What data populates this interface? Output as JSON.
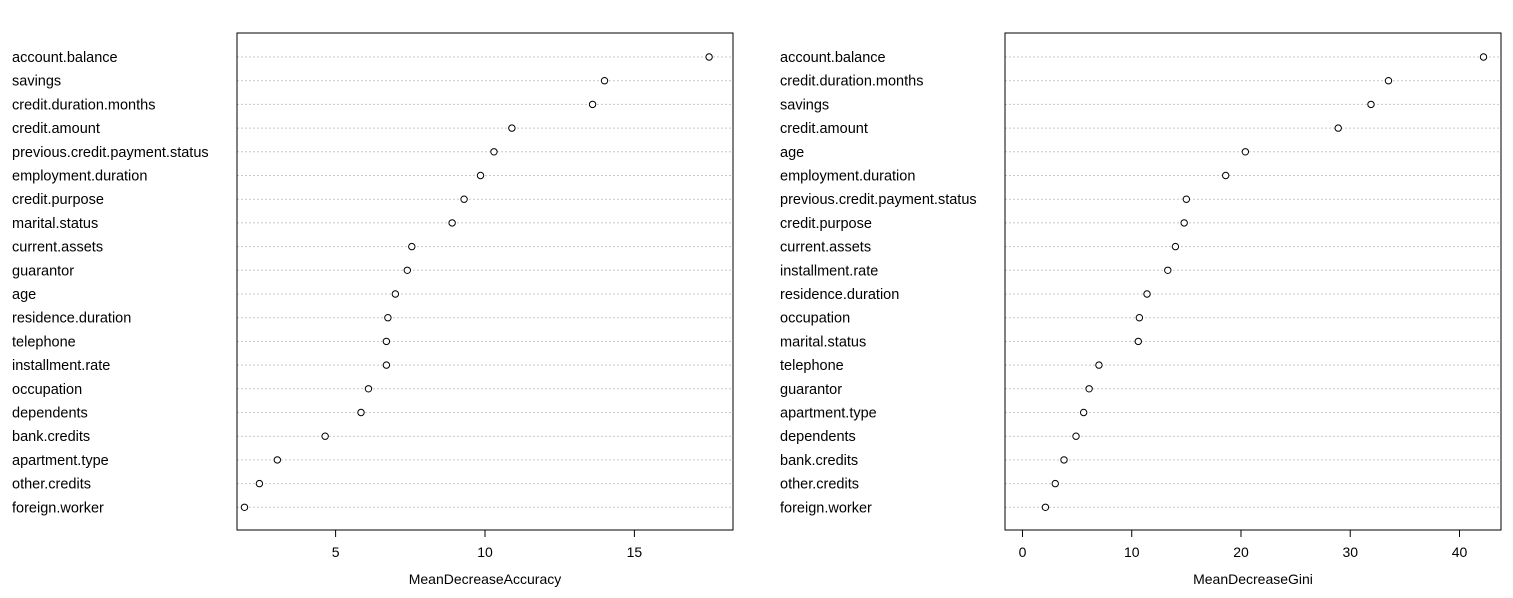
{
  "chart_data": [
    {
      "type": "dotchart",
      "title": "",
      "xlabel": "MeanDecreaseAccuracy",
      "ylabel": "",
      "xlim": [
        1.7,
        18.3
      ],
      "xticks": [
        5,
        10,
        15
      ],
      "grid": "dotted horizontal lines",
      "categories": [
        "account.balance",
        "savings",
        "credit.duration.months",
        "credit.amount",
        "previous.credit.payment.status",
        "employment.duration",
        "credit.purpose",
        "marital.status",
        "current.assets",
        "guarantor",
        "age",
        "residence.duration",
        "telephone",
        "installment.rate",
        "occupation",
        "dependents",
        "bank.credits",
        "apartment.type",
        "other.credits",
        "foreign.worker"
      ],
      "values": [
        17.5,
        14.0,
        13.6,
        10.9,
        10.3,
        9.85,
        9.3,
        8.9,
        7.55,
        7.4,
        7.0,
        6.75,
        6.7,
        6.7,
        6.1,
        5.85,
        4.65,
        3.05,
        2.45,
        1.95
      ]
    },
    {
      "type": "dotchart",
      "title": "",
      "xlabel": "MeanDecreaseGini",
      "ylabel": "",
      "xlim": [
        -1.6,
        43.8
      ],
      "xticks": [
        0,
        10,
        20,
        30,
        40
      ],
      "grid": "dotted horizontal lines",
      "categories": [
        "account.balance",
        "credit.duration.months",
        "savings",
        "credit.amount",
        "age",
        "employment.duration",
        "previous.credit.payment.status",
        "credit.purpose",
        "current.assets",
        "installment.rate",
        "residence.duration",
        "occupation",
        "marital.status",
        "telephone",
        "guarantor",
        "apartment.type",
        "dependents",
        "bank.credits",
        "other.credits",
        "foreign.worker"
      ],
      "values": [
        42.2,
        33.5,
        31.9,
        28.9,
        20.4,
        18.6,
        15.0,
        14.8,
        14.0,
        13.3,
        11.4,
        10.7,
        10.6,
        7.0,
        6.1,
        5.6,
        4.9,
        3.8,
        3.0,
        2.1
      ]
    }
  ]
}
